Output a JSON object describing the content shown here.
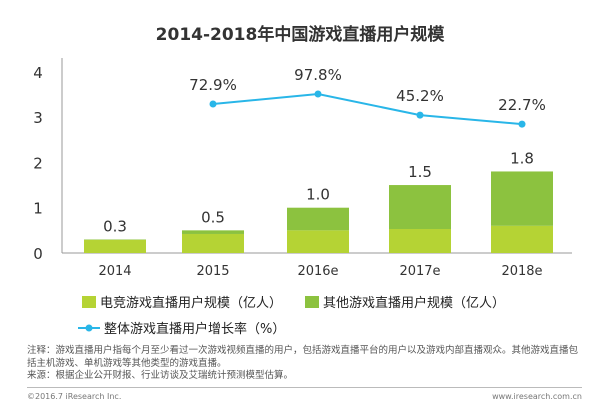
{
  "chart_data": {
    "type": "bar",
    "title": "2014-2018年中国游戏直播用户规模",
    "categories": [
      "2014",
      "2015",
      "2016e",
      "2017e",
      "2018e"
    ],
    "ylim": [
      0,
      4
    ],
    "yticks": [
      "0",
      "1",
      "2",
      "3",
      "4"
    ],
    "grid": false,
    "legend_position": "bottom",
    "series": [
      {
        "name": "电竞游戏直播用户规模（亿人）",
        "type": "bar",
        "stack": true,
        "color": "#b5d334",
        "values": [
          0.29,
          0.42,
          0.5,
          0.53,
          0.6
        ]
      },
      {
        "name": "其他游戏直播用户规模（亿人）",
        "type": "bar",
        "stack": true,
        "color": "#8cc23f",
        "values": [
          0.01,
          0.08,
          0.5,
          0.97,
          1.2
        ]
      },
      {
        "name": "整体游戏直播用户增长率（%）",
        "type": "line",
        "color": "#29b6e8",
        "x": [
          "2015",
          "2016e",
          "2017e",
          "2018e"
        ],
        "values": [
          72.9,
          97.8,
          45.2,
          22.7
        ]
      }
    ],
    "total_labels": [
      "0.3",
      "0.5",
      "1.0",
      "1.5",
      "1.8"
    ],
    "line_labels": [
      "72.9%",
      "97.8%",
      "45.2%",
      "22.7%"
    ]
  },
  "notes": {
    "note": "注释：游戏直播用户指每个月至少看过一次游戏视频直播的用户，包括游戏直播平台的用户以及游戏内部直播观众。其他游戏直播包括主机游戏、单机游戏等其他类型的游戏直播。",
    "source": "来源：根据企业公开财报、行业访谈及艾瑞统计预测模型估算。"
  },
  "footer": {
    "copyright": "©2016.7 iResearch Inc.",
    "website": "www.iresearch.com.cn"
  }
}
